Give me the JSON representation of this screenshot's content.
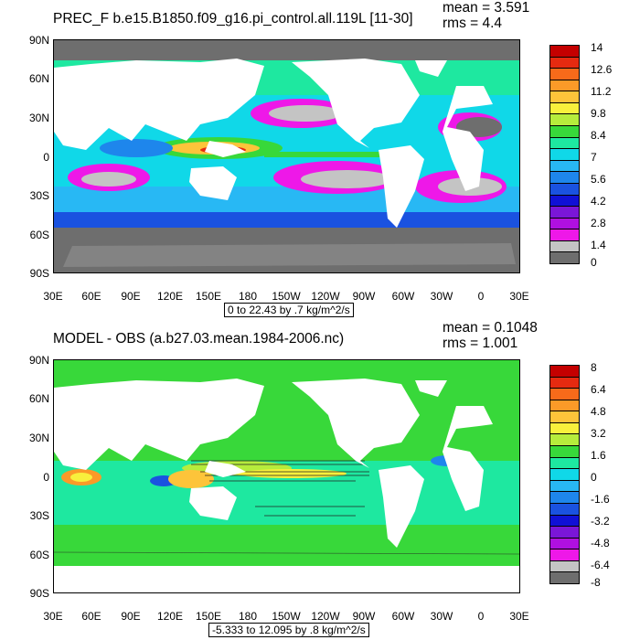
{
  "panels": [
    {
      "id": "top",
      "title": "PREC_F b.e15.B1850.f09_g16.pi_control.all.119L [11-30]",
      "mean": "mean = 3.591",
      "rms": "rms = 4.4",
      "range_label": "0 to 22.43 by .7 kg/m^2/s",
      "lat_labels": [
        "90N",
        "60N",
        "30N",
        "0",
        "30S",
        "60S",
        "90S"
      ],
      "lon_labels": [
        "30E",
        "60E",
        "90E",
        "120E",
        "150E",
        "180",
        "150W",
        "120W",
        "90W",
        "60W",
        "30W",
        "0",
        "30E"
      ],
      "colorbar_labels": [
        "14",
        "12.6",
        "11.2",
        "9.8",
        "8.4",
        "7",
        "5.6",
        "4.2",
        "2.8",
        "1.4",
        "0"
      ],
      "colorbar_colors": [
        "#c40000",
        "#e62a10",
        "#f86a1a",
        "#fb9a28",
        "#fdc43a",
        "#f8f03c",
        "#b6ec3c",
        "#38d83a",
        "#1ee8a0",
        "#10d8e8",
        "#28b8f4",
        "#1e86ec",
        "#1a52e0",
        "#1010d6",
        "#7a16d8",
        "#b010e0",
        "#ee18e8",
        "#c4c4c4",
        "#6e6e6e"
      ]
    },
    {
      "id": "bottom",
      "title": "MODEL - OBS (a.b27.03.mean.1984-2006.nc)",
      "mean": "mean = 0.1048",
      "rms": "rms = 1.001",
      "range_label": "-5.333 to 12.095 by .8 kg/m^2/s",
      "lat_labels": [
        "90N",
        "60N",
        "30N",
        "0",
        "30S",
        "60S",
        "90S"
      ],
      "lon_labels": [
        "30E",
        "60E",
        "90E",
        "120E",
        "150E",
        "180",
        "150W",
        "120W",
        "90W",
        "60W",
        "30W",
        "0",
        "30E"
      ],
      "colorbar_labels": [
        "8",
        "6.4",
        "4.8",
        "3.2",
        "1.6",
        "0",
        "-1.6",
        "-3.2",
        "-4.8",
        "-6.4",
        "-8"
      ],
      "colorbar_colors": [
        "#c40000",
        "#e62a10",
        "#f86a1a",
        "#fb9a28",
        "#fdc43a",
        "#f8f03c",
        "#b6ec3c",
        "#38d83a",
        "#1ee8a0",
        "#10d8e8",
        "#28b8f4",
        "#1e86ec",
        "#1a52e0",
        "#1010d6",
        "#7a16d8",
        "#b010e0",
        "#ee18e8",
        "#c4c4c4",
        "#6e6e6e"
      ]
    }
  ]
}
